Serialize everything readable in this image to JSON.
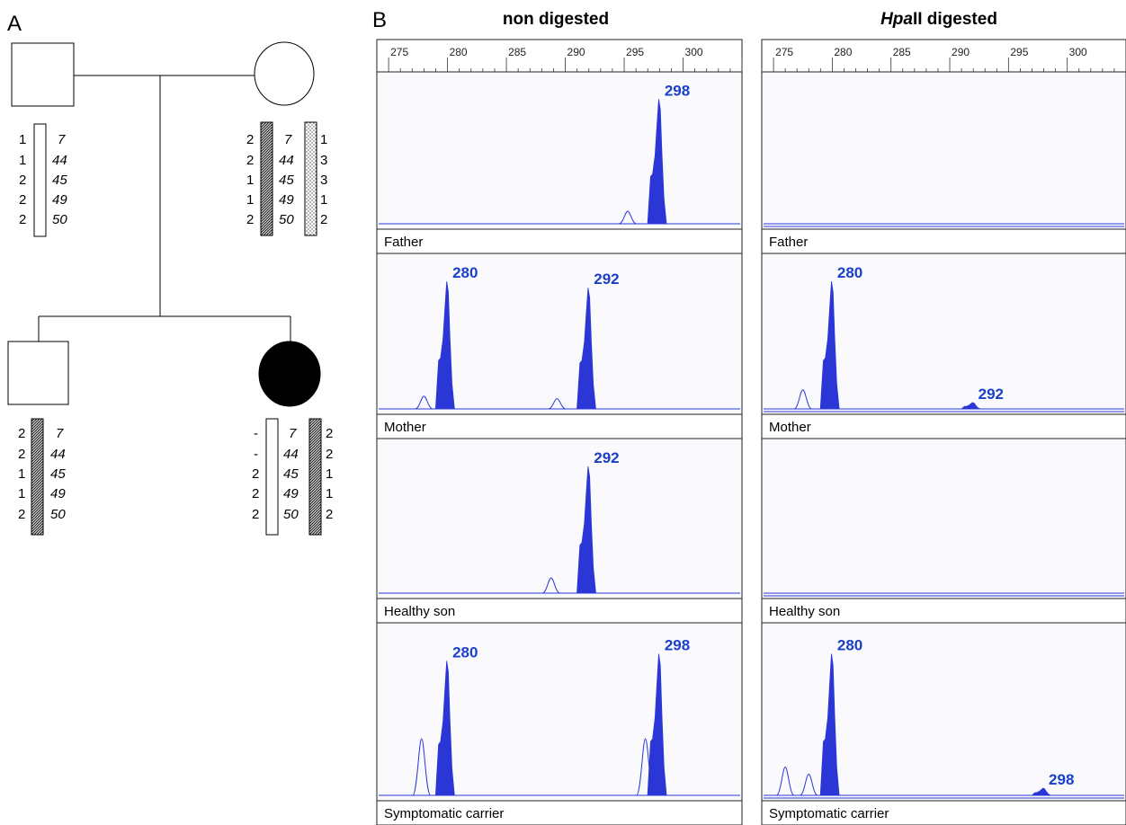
{
  "panel_labels": {
    "a": "A",
    "b": "B"
  },
  "pedigree": {
    "father_haplotype": {
      "left_alleles": [
        "1",
        "1",
        "2",
        "2",
        "2"
      ],
      "markers": [
        "7",
        "44",
        "45",
        "49",
        "50"
      ]
    },
    "mother_haplotype": {
      "left_alleles": [
        "2",
        "2",
        "1",
        "1",
        "2"
      ],
      "markers": [
        "7",
        "44",
        "45",
        "49",
        "50"
      ],
      "right_alleles": [
        "1",
        "3",
        "3",
        "1",
        "2"
      ]
    },
    "son_haplotype": {
      "left_alleles": [
        "2",
        "2",
        "1",
        "1",
        "2"
      ],
      "markers": [
        "7",
        "44",
        "45",
        "49",
        "50"
      ]
    },
    "daughter_haplotype": {
      "left_alleles": [
        "-",
        "-",
        "2",
        "2",
        "2"
      ],
      "markers": [
        "7",
        "44",
        "45",
        "49",
        "50"
      ],
      "right_alleles": [
        "2",
        "2",
        "1",
        "1",
        "2"
      ]
    }
  },
  "electropherograms": {
    "columns": [
      {
        "title_plain": "non digested"
      },
      {
        "title_italic": "Hpa",
        "title_rest": "II digested"
      }
    ],
    "axis_ticks": [
      "275",
      "280",
      "285",
      "290",
      "295",
      "300"
    ],
    "x_range": [
      274,
      305
    ],
    "lanes": [
      "Father",
      "Mother",
      "Healthy son",
      "Symptomatic carrier"
    ],
    "chart_data": [
      {
        "type": "area",
        "column": "non digested",
        "lane": "Father",
        "peaks": [
          {
            "size": 298,
            "label": "298",
            "relative_height": 1.0,
            "filled": true
          },
          {
            "size": 295.3,
            "relative_height": 0.1,
            "filled": false
          }
        ]
      },
      {
        "type": "area",
        "column": "non digested",
        "lane": "Mother",
        "peaks": [
          {
            "size": 280,
            "label": "280",
            "relative_height": 1.0,
            "filled": true
          },
          {
            "size": 292,
            "label": "292",
            "relative_height": 0.95,
            "filled": true
          },
          {
            "size": 278,
            "relative_height": 0.1,
            "filled": false
          },
          {
            "size": 289.3,
            "relative_height": 0.08,
            "filled": false
          }
        ]
      },
      {
        "type": "area",
        "column": "non digested",
        "lane": "Healthy son",
        "peaks": [
          {
            "size": 292,
            "label": "292",
            "relative_height": 1.0,
            "filled": true
          },
          {
            "size": 288.8,
            "relative_height": 0.12,
            "filled": false
          }
        ]
      },
      {
        "type": "area",
        "column": "non digested",
        "lane": "Symptomatic carrier",
        "peaks": [
          {
            "size": 280,
            "label": "280",
            "relative_height": 0.95,
            "filled": true
          },
          {
            "size": 298,
            "label": "298",
            "relative_height": 1.0,
            "filled": true
          },
          {
            "size": 277.8,
            "relative_height": 0.4,
            "filled": false
          },
          {
            "size": 296.8,
            "relative_height": 0.4,
            "filled": false
          }
        ]
      },
      {
        "type": "area",
        "column": "HpaII digested",
        "lane": "Father",
        "peaks": []
      },
      {
        "type": "area",
        "column": "HpaII digested",
        "lane": "Mother",
        "peaks": [
          {
            "size": 280,
            "label": "280",
            "relative_height": 1.0,
            "filled": true
          },
          {
            "size": 292,
            "label": "292",
            "relative_height": 0.05,
            "filled": true
          },
          {
            "size": 277.5,
            "relative_height": 0.15,
            "filled": false
          }
        ]
      },
      {
        "type": "area",
        "column": "HpaII digested",
        "lane": "Healthy son",
        "peaks": []
      },
      {
        "type": "area",
        "column": "HpaII digested",
        "lane": "Symptomatic carrier",
        "peaks": [
          {
            "size": 280,
            "label": "280",
            "relative_height": 1.0,
            "filled": true
          },
          {
            "size": 298,
            "label": "298",
            "relative_height": 0.05,
            "filled": true
          },
          {
            "size": 276,
            "relative_height": 0.2,
            "filled": false
          },
          {
            "size": 278,
            "relative_height": 0.15,
            "filled": false
          }
        ]
      }
    ]
  },
  "colors": {
    "trace": "#2a37d6",
    "label": "#1a3fc8",
    "panel_bg": "#fafafd"
  }
}
